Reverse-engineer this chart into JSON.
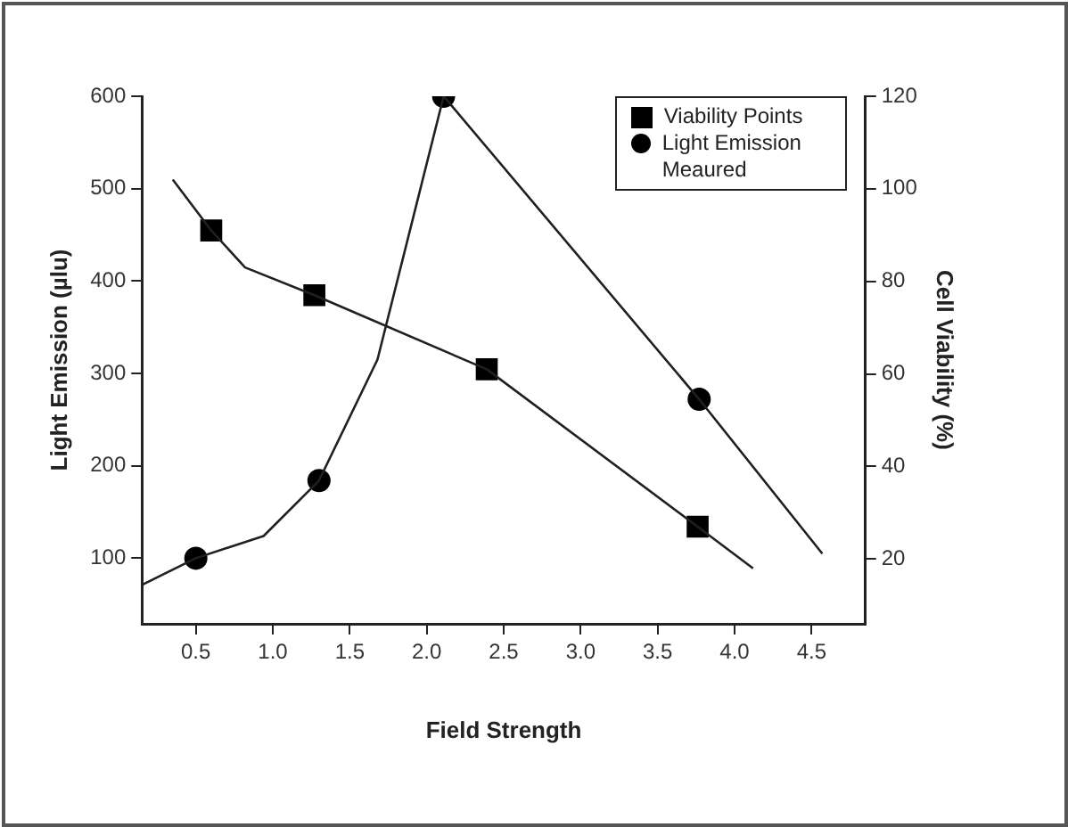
{
  "chart_data": {
    "type": "line",
    "xlabel": "Field Strength",
    "ylabel": "Light Emission (µlu)",
    "y2label": "Cell Viability (%)",
    "xlim": [
      0.15,
      4.85
    ],
    "xticks": [
      0.5,
      {
        "value": 1,
        "label": "1.0"
      },
      1.5,
      {
        "value": 2,
        "label": "2.0"
      },
      2.5,
      {
        "value": 3,
        "label": "3.0"
      },
      3.5,
      {
        "value": 4,
        "label": "4.0"
      },
      4.5
    ],
    "ylim": [
      29,
      600
    ],
    "yticks": [
      100,
      200,
      300,
      400,
      500,
      600
    ],
    "y2lim": [
      6,
      120
    ],
    "y2ticks": [
      20,
      40,
      60,
      80,
      100,
      120
    ],
    "grid": false,
    "legend": "top right",
    "series": [
      {
        "type": "line",
        "axis": "y2",
        "color": "#231f20",
        "marker": "none",
        "x": [
          0.35,
          0.6,
          0.82,
          1.27,
          2.39,
          3.76,
          4.12
        ],
        "values": [
          102,
          91,
          83,
          77,
          61,
          27,
          18
        ]
      },
      {
        "name": "Viability Points",
        "type": "scatter",
        "axis": "y2",
        "color": "#000000",
        "marker": "square",
        "x": [
          0.6,
          1.27,
          2.39,
          3.76
        ],
        "values": [
          91,
          77,
          61,
          27
        ]
      },
      {
        "type": "line",
        "axis": "y",
        "color": "#231f20",
        "marker": "none",
        "x": [
          0.15,
          0.5,
          0.94,
          1.3,
          1.68,
          2.11,
          3.77,
          4.57
        ],
        "values": [
          71,
          100,
          124,
          184,
          315,
          600,
          272,
          105
        ]
      },
      {
        "name": "Light Emission Meaured",
        "type": "scatter",
        "axis": "y",
        "color": "#000000",
        "marker": "circle",
        "x": [
          0.5,
          1.3,
          2.11,
          3.77
        ],
        "values": [
          100,
          184,
          600,
          272
        ]
      }
    ]
  }
}
